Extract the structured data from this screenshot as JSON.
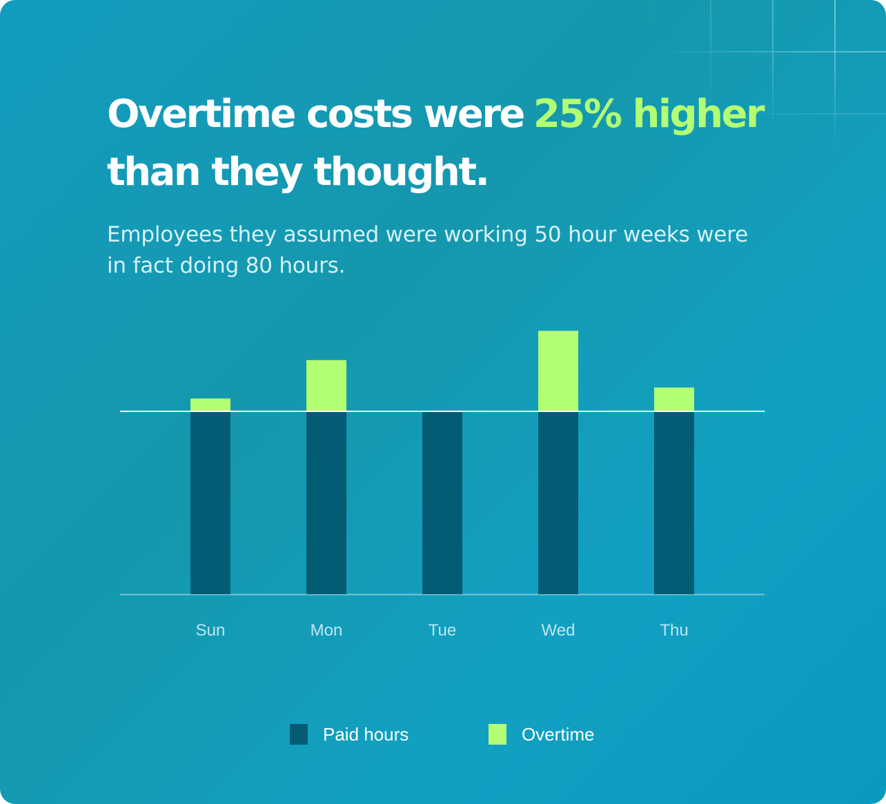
{
  "headline": {
    "text": "Overtime costs were",
    "accent": "25% higher",
    "text_end": "than they thought."
  },
  "subtitle": "Employees they assumed were working 50 hour weeks were in fact doing 80 hours.",
  "colors": {
    "paid": "#035c74",
    "overtime": "#b3ff74",
    "reference_line": "#ffffff",
    "baseline": "#7cc3d6",
    "tick_label": "#bfe6f0"
  },
  "chart_data": {
    "type": "bar",
    "stacked": true,
    "categories": [
      "Sun",
      "Mon",
      "Tue",
      "Wed",
      "Thu"
    ],
    "series": [
      {
        "name": "Paid hours",
        "values": [
          50,
          50,
          50,
          50,
          50
        ]
      },
      {
        "name": "Overtime",
        "values": [
          3.5,
          14,
          0,
          22,
          6.5
        ]
      }
    ],
    "reference_line": 50,
    "ylim": [
      0,
      72
    ],
    "title": "",
    "xlabel": "",
    "ylabel": "",
    "y_axis_visible": false,
    "grid": false,
    "legend_position": "bottom-center"
  },
  "legend": {
    "paid_label": "Paid hours",
    "overtime_label": "Overtime"
  }
}
